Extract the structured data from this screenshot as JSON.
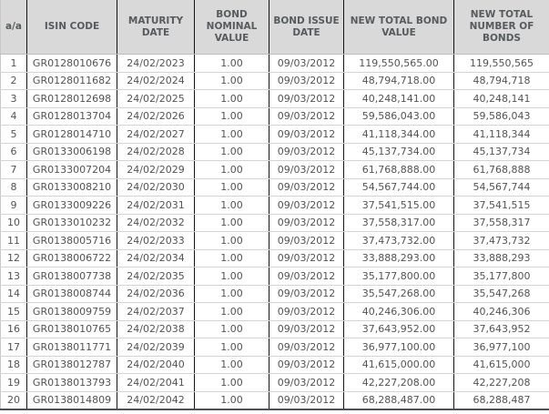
{
  "colors": {
    "header_bg": "#d9d9d9",
    "header_text": "#565b5e",
    "cell_text": "#535353",
    "grid_dark": "#141414",
    "grid_light": "#d4d4d4",
    "outer_border": "#c8c8c8",
    "header_bottom_border": "#bdbdbd",
    "table_bottom_border": "#46525f"
  },
  "table": {
    "columns": [
      "a/a",
      "ISIN CODE",
      "MATURITY DATE",
      "BOND NOMINAL VALUE",
      "BOND ISSUE DATE",
      "NEW TOTAL BOND VALUE",
      "NEW TOTAL NUMBER OF BONDS"
    ],
    "rows": [
      [
        "1",
        "GR0128010676",
        "24/02/2023",
        "1.00",
        "09/03/2012",
        "119,550,565.00",
        "119,550,565"
      ],
      [
        "2",
        "GR0128011682",
        "24/02/2024",
        "1.00",
        "09/03/2012",
        "48,794,718.00",
        "48,794,718"
      ],
      [
        "3",
        "GR0128012698",
        "24/02/2025",
        "1.00",
        "09/03/2012",
        "40,248,141.00",
        "40,248,141"
      ],
      [
        "4",
        "GR0128013704",
        "24/02/2026",
        "1.00",
        "09/03/2012",
        "59,586,043.00",
        "59,586,043"
      ],
      [
        "5",
        "GR0128014710",
        "24/02/2027",
        "1.00",
        "09/03/2012",
        "41,118,344.00",
        "41,118,344"
      ],
      [
        "6",
        "GR0133006198",
        "24/02/2028",
        "1.00",
        "09/03/2012",
        "45,137,734.00",
        "45,137,734"
      ],
      [
        "7",
        "GR0133007204",
        "24/02/2029",
        "1.00",
        "09/03/2012",
        "61,768,888.00",
        "61,768,888"
      ],
      [
        "8",
        "GR0133008210",
        "24/02/2030",
        "1.00",
        "09/03/2012",
        "54,567,744.00",
        "54,567,744"
      ],
      [
        "9",
        "GR0133009226",
        "24/02/2031",
        "1.00",
        "09/03/2012",
        "37,541,515.00",
        "37,541,515"
      ],
      [
        "10",
        "GR0133010232",
        "24/02/2032",
        "1.00",
        "09/03/2012",
        "37,558,317.00",
        "37,558,317"
      ],
      [
        "11",
        "GR0138005716",
        "24/02/2033",
        "1.00",
        "09/03/2012",
        "37,473,732.00",
        "37,473,732"
      ],
      [
        "12",
        "GR0138006722",
        "24/02/2034",
        "1.00",
        "09/03/2012",
        "33,888,293.00",
        "33,888,293"
      ],
      [
        "13",
        "GR0138007738",
        "24/02/2035",
        "1.00",
        "09/03/2012",
        "35,177,800.00",
        "35,177,800"
      ],
      [
        "14",
        "GR0138008744",
        "24/02/2036",
        "1.00",
        "09/03/2012",
        "35,547,268.00",
        "35,547,268"
      ],
      [
        "15",
        "GR0138009759",
        "24/02/2037",
        "1.00",
        "09/03/2012",
        "40,246,306.00",
        "40,246,306"
      ],
      [
        "16",
        "GR0138010765",
        "24/02/2038",
        "1.00",
        "09/03/2012",
        "37,643,952.00",
        "37,643,952"
      ],
      [
        "17",
        "GR0138011771",
        "24/02/2039",
        "1.00",
        "09/03/2012",
        "36,977,100.00",
        "36,977,100"
      ],
      [
        "18",
        "GR0138012787",
        "24/02/2040",
        "1.00",
        "09/03/2012",
        "41,615,000.00",
        "41,615,000"
      ],
      [
        "19",
        "GR0138013793",
        "24/02/2041",
        "1.00",
        "09/03/2012",
        "42,227,208.00",
        "42,227,208"
      ],
      [
        "20",
        "GR0138014809",
        "24/02/2042",
        "1.00",
        "09/03/2012",
        "68,288,487.00",
        "68,288,487"
      ]
    ]
  }
}
